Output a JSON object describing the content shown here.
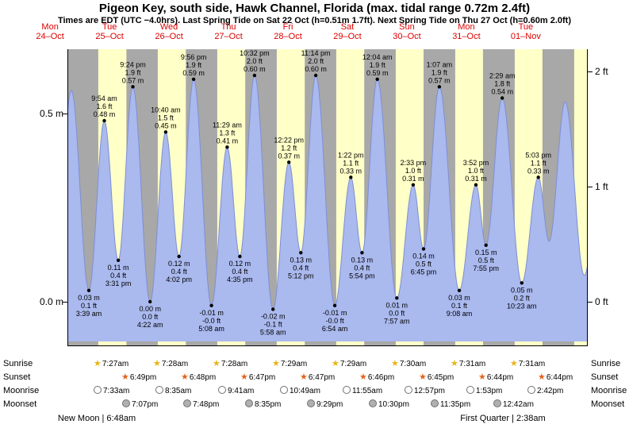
{
  "title": "Pigeon Key, south side, Hawk Channel, Florida (max. tidal range 0.72m 2.4ft)",
  "subtitle": "Times are EDT (UTC −4.0hrs). Last Spring Tide on Sat 22 Oct (h=0.51m 1.7ft). Next Spring Tide on Thu 27 Oct (h=0.60m 2.0ft)",
  "colors": {
    "night_band": "#a8a8a8",
    "day_band": "#ffffc8",
    "tide_fill": "#aab9ee",
    "tide_stroke": "#7d8fd6",
    "day_label": "#dd0000",
    "sunrise_star": "#e8b416",
    "sunset_star": "#e2641e",
    "moonrise_fill": "#ffffff",
    "moonset_fill": "#b0b0b0"
  },
  "days": [
    {
      "weekday": "Mon",
      "date": "24–Oct"
    },
    {
      "weekday": "Tue",
      "date": "25–Oct"
    },
    {
      "weekday": "Wed",
      "date": "26–Oct"
    },
    {
      "weekday": "Thu",
      "date": "27–Oct"
    },
    {
      "weekday": "Fri",
      "date": "28–Oct"
    },
    {
      "weekday": "Sat",
      "date": "29–Oct"
    },
    {
      "weekday": "Sun",
      "date": "30–Oct"
    },
    {
      "weekday": "Mon",
      "date": "31–Oct"
    },
    {
      "weekday": "Tue",
      "date": "01–Nov"
    }
  ],
  "y_axis": {
    "left": [
      {
        "text": "0.5 m",
        "m": 0.5
      },
      {
        "text": "0.0 m",
        "m": 0.0
      }
    ],
    "right": [
      {
        "text": "2 ft",
        "m": 0.6096
      },
      {
        "text": "1 ft",
        "m": 0.3048
      },
      {
        "text": "0 ft",
        "m": 0.0
      }
    ]
  },
  "chart_data": {
    "type": "area",
    "title": "Tide height curve, Mon 24 Oct evening – Wed 02 Nov, semidiurnal tides",
    "x_unit": "hours from Mon 24-Oct 00:00 (EDT)",
    "x_window_hours": [
      19,
      229
    ],
    "y_unit": "m",
    "y_window_m": [
      -0.118,
      0.669
    ],
    "grid": false,
    "daylight_bands": [
      [
        31.45,
        42.82
      ],
      [
        55.47,
        66.8
      ],
      [
        79.47,
        90.78
      ],
      [
        103.48,
        114.78
      ],
      [
        127.48,
        138.77
      ],
      [
        151.5,
        162.75
      ],
      [
        175.52,
        186.73
      ],
      [
        199.52,
        210.73
      ],
      [
        223.53,
        234.72
      ]
    ],
    "anchors": [
      [
        13.9,
        0.1
      ],
      [
        20.6,
        0.56
      ],
      [
        213.4,
        0.16
      ],
      [
        219.9,
        0.53
      ],
      [
        227.6,
        0.07
      ],
      [
        234.2,
        0.35
      ]
    ],
    "extremes": [
      {
        "t": 27.65,
        "m": 0.03,
        "type": "low",
        "lines": [
          "0.03 m",
          "0.1 ft",
          "3:39 am"
        ]
      },
      {
        "t": 33.9,
        "m": 0.48,
        "type": "high",
        "lines": [
          "9:54 am",
          "1.6 ft",
          "0.48 m"
        ]
      },
      {
        "t": 39.52,
        "m": 0.11,
        "type": "low",
        "lines": [
          "0.11 m",
          "0.4 ft",
          "3:31 pm"
        ]
      },
      {
        "t": 45.4,
        "m": 0.57,
        "type": "high",
        "lines": [
          "9:24 pm",
          "1.9 ft",
          "0.57 m"
        ]
      },
      {
        "t": 52.37,
        "m": 0.0,
        "type": "low",
        "lines": [
          "0.00 m",
          "0.0 ft",
          "4:22 am"
        ]
      },
      {
        "t": 58.67,
        "m": 0.45,
        "type": "high",
        "lines": [
          "10:40 am",
          "1.5 ft",
          "0.45 m"
        ]
      },
      {
        "t": 64.03,
        "m": 0.12,
        "type": "low",
        "lines": [
          "0.12 m",
          "0.4 ft",
          "4:02 pm"
        ]
      },
      {
        "t": 69.93,
        "m": 0.59,
        "type": "high",
        "lines": [
          "9:56 pm",
          "1.9 ft",
          "0.59 m"
        ]
      },
      {
        "t": 77.13,
        "m": -0.01,
        "type": "low",
        "lines": [
          "-0.01 m",
          "-0.0 ft",
          "5:08 am"
        ]
      },
      {
        "t": 83.48,
        "m": 0.41,
        "type": "high",
        "lines": [
          "11:29 am",
          "1.3 ft",
          "0.41 m"
        ]
      },
      {
        "t": 88.58,
        "m": 0.12,
        "type": "low",
        "lines": [
          "0.12 m",
          "0.4 ft",
          "4:35 pm"
        ]
      },
      {
        "t": 94.53,
        "m": 0.6,
        "type": "high",
        "lines": [
          "10:32 pm",
          "2.0 ft",
          "0.60 m"
        ]
      },
      {
        "t": 101.97,
        "m": -0.02,
        "type": "low",
        "lines": [
          "-0.02 m",
          "-0.1 ft",
          "5:58 am"
        ]
      },
      {
        "t": 108.37,
        "m": 0.37,
        "type": "high",
        "lines": [
          "12:22 pm",
          "1.2 ft",
          "0.37 m"
        ]
      },
      {
        "t": 113.2,
        "m": 0.13,
        "type": "low",
        "lines": [
          "0.13 m",
          "0.4 ft",
          "5:12 pm"
        ]
      },
      {
        "t": 119.23,
        "m": 0.6,
        "type": "high",
        "lines": [
          "11:14 pm",
          "2.0 ft",
          "0.60 m"
        ]
      },
      {
        "t": 126.9,
        "m": -0.01,
        "type": "low",
        "lines": [
          "-0.01 m",
          "-0.0 ft",
          "6:54 am"
        ]
      },
      {
        "t": 133.37,
        "m": 0.33,
        "type": "high",
        "lines": [
          "1:22 pm",
          "1.1 ft",
          "0.33 m"
        ]
      },
      {
        "t": 137.9,
        "m": 0.13,
        "type": "low",
        "lines": [
          "0.13 m",
          "0.4 ft",
          "5:54 pm"
        ]
      },
      {
        "t": 144.07,
        "m": 0.59,
        "type": "high",
        "lines": [
          "12:04 am",
          "1.9 ft",
          "0.59 m"
        ]
      },
      {
        "t": 151.95,
        "m": 0.01,
        "type": "low",
        "lines": [
          "0.01 m",
          "0.0 ft",
          "7:57 am"
        ]
      },
      {
        "t": 158.55,
        "m": 0.31,
        "type": "high",
        "lines": [
          "2:33 pm",
          "1.0 ft",
          "0.31 m"
        ]
      },
      {
        "t": 162.75,
        "m": 0.14,
        "type": "low",
        "lines": [
          "0.14 m",
          "0.5 ft",
          "6:45 pm"
        ]
      },
      {
        "t": 169.12,
        "m": 0.57,
        "type": "high",
        "lines": [
          "1:07 am",
          "1.9 ft",
          "0.57 m"
        ]
      },
      {
        "t": 177.13,
        "m": 0.03,
        "type": "low",
        "lines": [
          "0.03 m",
          "0.1 ft",
          "9:08 am"
        ]
      },
      {
        "t": 183.87,
        "m": 0.31,
        "type": "high",
        "lines": [
          "3:52 pm",
          "1.0 ft",
          "0.31 m"
        ]
      },
      {
        "t": 187.92,
        "m": 0.15,
        "type": "low",
        "lines": [
          "0.15 m",
          "0.5 ft",
          "7:55 pm"
        ]
      },
      {
        "t": 194.48,
        "m": 0.54,
        "type": "high",
        "lines": [
          "2:29 am",
          "1.8 ft",
          "0.54 m"
        ]
      },
      {
        "t": 202.38,
        "m": 0.05,
        "type": "low",
        "lines": [
          "0.05 m",
          "0.2 ft",
          "10:23 am"
        ]
      },
      {
        "t": 209.05,
        "m": 0.33,
        "type": "high",
        "lines": [
          "5:03 pm",
          "1.1 ft",
          "0.33 m"
        ]
      }
    ]
  },
  "astro": {
    "rows": [
      {
        "id": "sunrise",
        "label": "Sunrise",
        "icon": "star",
        "items": [
          {
            "t": 31.45,
            "time": "7:27am"
          },
          {
            "t": 55.47,
            "time": "7:28am"
          },
          {
            "t": 79.47,
            "time": "7:28am"
          },
          {
            "t": 103.48,
            "time": "7:29am"
          },
          {
            "t": 127.48,
            "time": "7:29am"
          },
          {
            "t": 151.5,
            "time": "7:30am"
          },
          {
            "t": 175.52,
            "time": "7:31am"
          },
          {
            "t": 199.52,
            "time": "7:31am"
          }
        ]
      },
      {
        "id": "sunset",
        "label": "Sunset",
        "icon": "star",
        "items": [
          {
            "t": 42.82,
            "time": "6:49pm"
          },
          {
            "t": 66.8,
            "time": "6:48pm"
          },
          {
            "t": 90.78,
            "time": "6:47pm"
          },
          {
            "t": 114.78,
            "time": "6:47pm"
          },
          {
            "t": 138.77,
            "time": "6:46pm"
          },
          {
            "t": 162.75,
            "time": "6:45pm"
          },
          {
            "t": 186.73,
            "time": "6:44pm"
          },
          {
            "t": 210.73,
            "time": "6:44pm"
          }
        ]
      },
      {
        "id": "moonrise",
        "label": "Moonrise",
        "icon": "circle-open",
        "items": [
          {
            "t": 31.55,
            "time": "7:33am"
          },
          {
            "t": 56.58,
            "time": "8:35am"
          },
          {
            "t": 81.68,
            "time": "9:41am"
          },
          {
            "t": 106.82,
            "time": "10:49am"
          },
          {
            "t": 131.92,
            "time": "11:55am"
          },
          {
            "t": 156.95,
            "time": "12:57pm"
          },
          {
            "t": 181.88,
            "time": "1:53pm"
          },
          {
            "t": 206.7,
            "time": "2:42pm"
          }
        ]
      },
      {
        "id": "moonset",
        "label": "Moonset",
        "icon": "circle-filled",
        "items": [
          {
            "t": 43.12,
            "time": "7:07pm"
          },
          {
            "t": 67.8,
            "time": "7:48pm"
          },
          {
            "t": 92.58,
            "time": "8:35pm"
          },
          {
            "t": 117.48,
            "time": "9:29pm"
          },
          {
            "t": 142.5,
            "time": "10:30pm"
          },
          {
            "t": 167.58,
            "time": "11:35pm"
          },
          {
            "t": 192.7,
            "time": "12:42am"
          }
        ]
      }
    ],
    "phases": [
      {
        "text": "New Moon | 6:48am",
        "t": 30.8
      },
      {
        "text": "First Quarter | 2:38am",
        "t": 194.63
      }
    ]
  }
}
